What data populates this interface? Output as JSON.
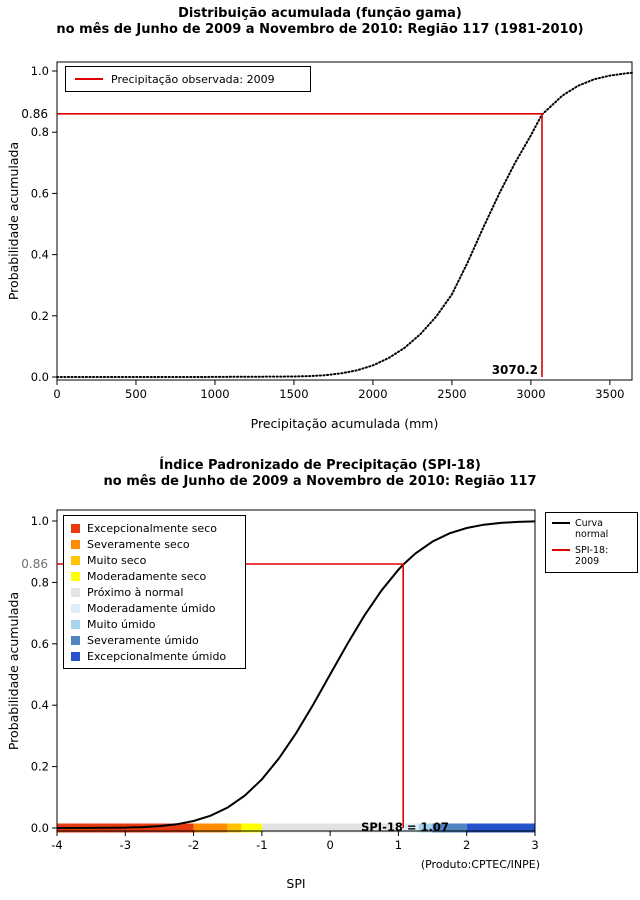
{
  "colors": {
    "indicator": "#DE0000",
    "curve": "#000000",
    "background": "#FFFFFF"
  },
  "chart_data": [
    {
      "type": "line",
      "title": "Distribuição acumulada (função gama)",
      "subtitle": "no mês de Junho de 2009 a Novembro de 2010: Região 117 (1981-2010)",
      "xlabel": "Precipitação acumulada (mm)",
      "ylabel": "Probabilidade acumulada",
      "xlim": [
        0,
        3640
      ],
      "ylim": [
        0,
        1
      ],
      "grid": false,
      "dotted": true,
      "x_ticks": [
        {
          "v": 0,
          "label": "0"
        },
        {
          "v": 500,
          "label": "500"
        },
        {
          "v": 1000,
          "label": "1000"
        },
        {
          "v": 1500,
          "label": "1500"
        },
        {
          "v": 2000,
          "label": "2000"
        },
        {
          "v": 2500,
          "label": "2500"
        },
        {
          "v": 3000,
          "label": "3000"
        },
        {
          "v": 3500,
          "label": "3500"
        }
      ],
      "y_ticks": [
        {
          "v": 0.0,
          "label": "0.0"
        },
        {
          "v": 0.2,
          "label": "0.2"
        },
        {
          "v": 0.4,
          "label": "0.4"
        },
        {
          "v": 0.6,
          "label": "0.6"
        },
        {
          "v": 0.8,
          "label": "0.8"
        },
        {
          "v": 1.0,
          "label": "1.0"
        }
      ],
      "legend": {
        "label": "Precipitação observada: 2009"
      },
      "indicator": {
        "x_value": 3070.2,
        "y_value": 0.86,
        "x_label": "3070.2",
        "y_label": "0.86"
      },
      "curve": [
        [
          0,
          0.0
        ],
        [
          300,
          0.0
        ],
        [
          600,
          0.0
        ],
        [
          900,
          0.0
        ],
        [
          1100,
          0.0005
        ],
        [
          1300,
          0.001
        ],
        [
          1500,
          0.0015
        ],
        [
          1600,
          0.003
        ],
        [
          1700,
          0.006
        ],
        [
          1800,
          0.012
        ],
        [
          1900,
          0.022
        ],
        [
          2000,
          0.038
        ],
        [
          2100,
          0.062
        ],
        [
          2200,
          0.095
        ],
        [
          2300,
          0.14
        ],
        [
          2400,
          0.197
        ],
        [
          2500,
          0.27
        ],
        [
          2600,
          0.375
        ],
        [
          2700,
          0.49
        ],
        [
          2800,
          0.6
        ],
        [
          2900,
          0.7
        ],
        [
          3000,
          0.79
        ],
        [
          3070.2,
          0.858
        ],
        [
          3100,
          0.872
        ],
        [
          3200,
          0.92
        ],
        [
          3300,
          0.952
        ],
        [
          3400,
          0.973
        ],
        [
          3500,
          0.985
        ],
        [
          3600,
          0.992
        ],
        [
          3640,
          0.994
        ]
      ]
    },
    {
      "type": "line",
      "title": "Índice Padronizado de Precipitação (SPI-18)",
      "subtitle": "no mês de Junho de 2009 a Novembro de 2010: Região 117",
      "xlabel": "SPI",
      "ylabel": "Probabilidade acumulada",
      "xlim": [
        -4,
        3
      ],
      "ylim": [
        0,
        1
      ],
      "grid": false,
      "dotted": false,
      "x_ticks": [
        {
          "v": -4,
          "label": "-4"
        },
        {
          "v": -3,
          "label": "-3"
        },
        {
          "v": -2,
          "label": "-2"
        },
        {
          "v": -1,
          "label": "-1"
        },
        {
          "v": 0,
          "label": "0"
        },
        {
          "v": 1,
          "label": "1"
        },
        {
          "v": 2,
          "label": "2"
        },
        {
          "v": 3,
          "label": "3"
        }
      ],
      "y_ticks": [
        {
          "v": 0.0,
          "label": "0.0"
        },
        {
          "v": 0.2,
          "label": "0.2"
        },
        {
          "v": 0.4,
          "label": "0.4"
        },
        {
          "v": 0.6,
          "label": "0.6"
        },
        {
          "v": 0.8,
          "label": "0.8"
        },
        {
          "v": 1.0,
          "label": "1.0"
        }
      ],
      "categories": [
        {
          "label": "Excepcionalmente seco",
          "color": "#E83A10"
        },
        {
          "label": "Severamente seco",
          "color": "#FF8C00"
        },
        {
          "label": "Muito seco",
          "color": "#FFC300"
        },
        {
          "label": "Moderadamente seco",
          "color": "#FFFF00"
        },
        {
          "label": "Próximo à normal",
          "color": "#E3E3E3"
        },
        {
          "label": "Moderadamente úmido",
          "color": "#DDEEF8"
        },
        {
          "label": "Muito úmido",
          "color": "#A8D3EE"
        },
        {
          "label": "Severamente úmido",
          "color": "#4F86C0"
        },
        {
          "label": "Excepcionalmente úmido",
          "color": "#2553CC"
        }
      ],
      "line_legend": [
        {
          "label": "Curva\nnormal",
          "color": "#000000"
        },
        {
          "label": "SPI-18: 2009",
          "color": "#DE0000"
        }
      ],
      "bar_segments": [
        {
          "from": -4,
          "to": -2,
          "color": "#E83A10"
        },
        {
          "from": -2,
          "to": -1.5,
          "color": "#FF8C00"
        },
        {
          "from": -1.5,
          "to": -1.3,
          "color": "#FFC300"
        },
        {
          "from": -1.3,
          "to": -1,
          "color": "#FFFF00"
        },
        {
          "from": -1,
          "to": 1,
          "color": "#E3E3E3"
        },
        {
          "from": 1,
          "to": 1.3,
          "color": "#DDEEF8"
        },
        {
          "from": 1.3,
          "to": 1.5,
          "color": "#A8D3EE"
        },
        {
          "from": 1.5,
          "to": 2,
          "color": "#4F86C0"
        },
        {
          "from": 2,
          "to": 3,
          "color": "#2553CC"
        }
      ],
      "indicator": {
        "x_value": 1.07,
        "y_value": 0.86,
        "y_label": "0.86"
      },
      "annotation": "SPI-18 = 1.07",
      "product": "(Produto:CPTEC/INPE)",
      "curve": [
        [
          -4,
          0.0
        ],
        [
          -3.5,
          0.0002
        ],
        [
          -3,
          0.0013
        ],
        [
          -2.75,
          0.003
        ],
        [
          -2.5,
          0.0062
        ],
        [
          -2.25,
          0.0122
        ],
        [
          -2,
          0.0228
        ],
        [
          -1.75,
          0.0401
        ],
        [
          -1.5,
          0.0668
        ],
        [
          -1.25,
          0.1056
        ],
        [
          -1,
          0.1587
        ],
        [
          -0.75,
          0.2266
        ],
        [
          -0.5,
          0.3085
        ],
        [
          -0.25,
          0.4013
        ],
        [
          0,
          0.5
        ],
        [
          0.25,
          0.5987
        ],
        [
          0.5,
          0.6915
        ],
        [
          0.75,
          0.7734
        ],
        [
          1,
          0.8413
        ],
        [
          1.07,
          0.858
        ],
        [
          1.25,
          0.8944
        ],
        [
          1.5,
          0.9332
        ],
        [
          1.75,
          0.9599
        ],
        [
          2,
          0.9772
        ],
        [
          2.25,
          0.9878
        ],
        [
          2.5,
          0.9938
        ],
        [
          2.75,
          0.997
        ],
        [
          3,
          0.9987
        ]
      ]
    }
  ]
}
